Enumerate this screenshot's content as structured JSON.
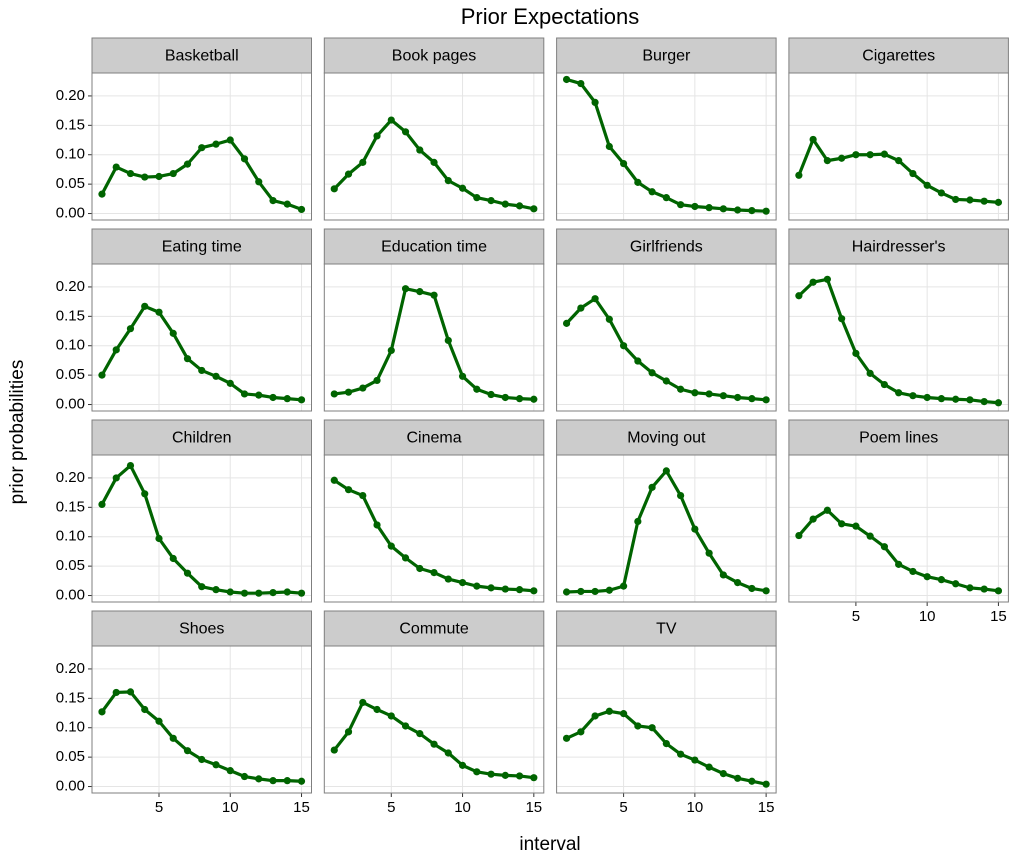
{
  "chart_data": {
    "type": "line",
    "title": "Prior Expectations",
    "xlabel": "interval",
    "ylabel": "prior probabilities",
    "color": "#006400",
    "grid": true,
    "ncol": 4,
    "x": [
      1,
      2,
      3,
      4,
      5,
      6,
      7,
      8,
      9,
      10,
      11,
      12,
      13,
      14,
      15
    ],
    "xlim": [
      0.3,
      15.7
    ],
    "xticks": [
      5,
      10,
      15
    ],
    "ylim": [
      -0.011,
      0.239
    ],
    "yticks": [
      {
        "value": 0,
        "label": "0.00"
      },
      {
        "value": 0.05,
        "label": "0.05"
      },
      {
        "value": 0.1,
        "label": "0.10"
      },
      {
        "value": 0.15,
        "label": "0.15"
      },
      {
        "value": 0.2,
        "label": "0.20"
      }
    ],
    "facets": [
      {
        "name": "Basketball",
        "values": [
          0.033,
          0.079,
          0.068,
          0.062,
          0.063,
          0.068,
          0.084,
          0.112,
          0.118,
          0.125,
          0.093,
          0.054,
          0.022,
          0.016,
          0.007
        ]
      },
      {
        "name": "Book pages",
        "values": [
          0.042,
          0.067,
          0.087,
          0.132,
          0.159,
          0.139,
          0.108,
          0.087,
          0.056,
          0.043,
          0.027,
          0.022,
          0.016,
          0.013,
          0.008
        ]
      },
      {
        "name": "Burger",
        "values": [
          0.228,
          0.221,
          0.189,
          0.114,
          0.085,
          0.053,
          0.037,
          0.027,
          0.015,
          0.012,
          0.01,
          0.008,
          0.006,
          0.005,
          0.004
        ]
      },
      {
        "name": "Cigarettes",
        "values": [
          0.065,
          0.126,
          0.09,
          0.094,
          0.1,
          0.1,
          0.101,
          0.09,
          0.068,
          0.048,
          0.035,
          0.024,
          0.023,
          0.021,
          0.019
        ]
      },
      {
        "name": "Eating time",
        "values": [
          0.05,
          0.093,
          0.129,
          0.167,
          0.157,
          0.121,
          0.078,
          0.058,
          0.048,
          0.036,
          0.018,
          0.016,
          0.012,
          0.01,
          0.008
        ]
      },
      {
        "name": "Education time",
        "values": [
          0.018,
          0.021,
          0.028,
          0.041,
          0.092,
          0.197,
          0.192,
          0.186,
          0.109,
          0.048,
          0.026,
          0.017,
          0.012,
          0.01,
          0.009
        ]
      },
      {
        "name": "Girlfriends",
        "values": [
          0.138,
          0.164,
          0.18,
          0.145,
          0.1,
          0.074,
          0.054,
          0.04,
          0.026,
          0.02,
          0.018,
          0.015,
          0.012,
          0.01,
          0.008
        ]
      },
      {
        "name": "Hairdresser's",
        "values": [
          0.185,
          0.208,
          0.213,
          0.146,
          0.087,
          0.053,
          0.034,
          0.02,
          0.015,
          0.012,
          0.01,
          0.009,
          0.008,
          0.005,
          0.003
        ]
      },
      {
        "name": "Children",
        "values": [
          0.155,
          0.2,
          0.221,
          0.173,
          0.097,
          0.063,
          0.038,
          0.015,
          0.01,
          0.006,
          0.004,
          0.004,
          0.005,
          0.006,
          0.004
        ]
      },
      {
        "name": "Cinema",
        "values": [
          0.196,
          0.18,
          0.17,
          0.12,
          0.084,
          0.064,
          0.046,
          0.039,
          0.028,
          0.022,
          0.016,
          0.013,
          0.011,
          0.01,
          0.008
        ]
      },
      {
        "name": "Moving out",
        "values": [
          0.006,
          0.007,
          0.007,
          0.009,
          0.016,
          0.126,
          0.184,
          0.212,
          0.17,
          0.113,
          0.072,
          0.035,
          0.022,
          0.012,
          0.008
        ]
      },
      {
        "name": "Poem lines",
        "values": [
          0.102,
          0.13,
          0.145,
          0.122,
          0.118,
          0.101,
          0.083,
          0.053,
          0.041,
          0.032,
          0.027,
          0.02,
          0.013,
          0.011,
          0.008
        ]
      },
      {
        "name": "Shoes",
        "values": [
          0.127,
          0.16,
          0.161,
          0.131,
          0.111,
          0.082,
          0.061,
          0.046,
          0.037,
          0.027,
          0.017,
          0.013,
          0.01,
          0.01,
          0.009
        ]
      },
      {
        "name": "Commute",
        "values": [
          0.062,
          0.093,
          0.143,
          0.131,
          0.12,
          0.103,
          0.09,
          0.072,
          0.057,
          0.036,
          0.025,
          0.021,
          0.019,
          0.018,
          0.015
        ]
      },
      {
        "name": "TV",
        "values": [
          0.082,
          0.093,
          0.12,
          0.128,
          0.124,
          0.103,
          0.1,
          0.073,
          0.055,
          0.045,
          0.033,
          0.022,
          0.014,
          0.009,
          0.004
        ]
      }
    ]
  }
}
